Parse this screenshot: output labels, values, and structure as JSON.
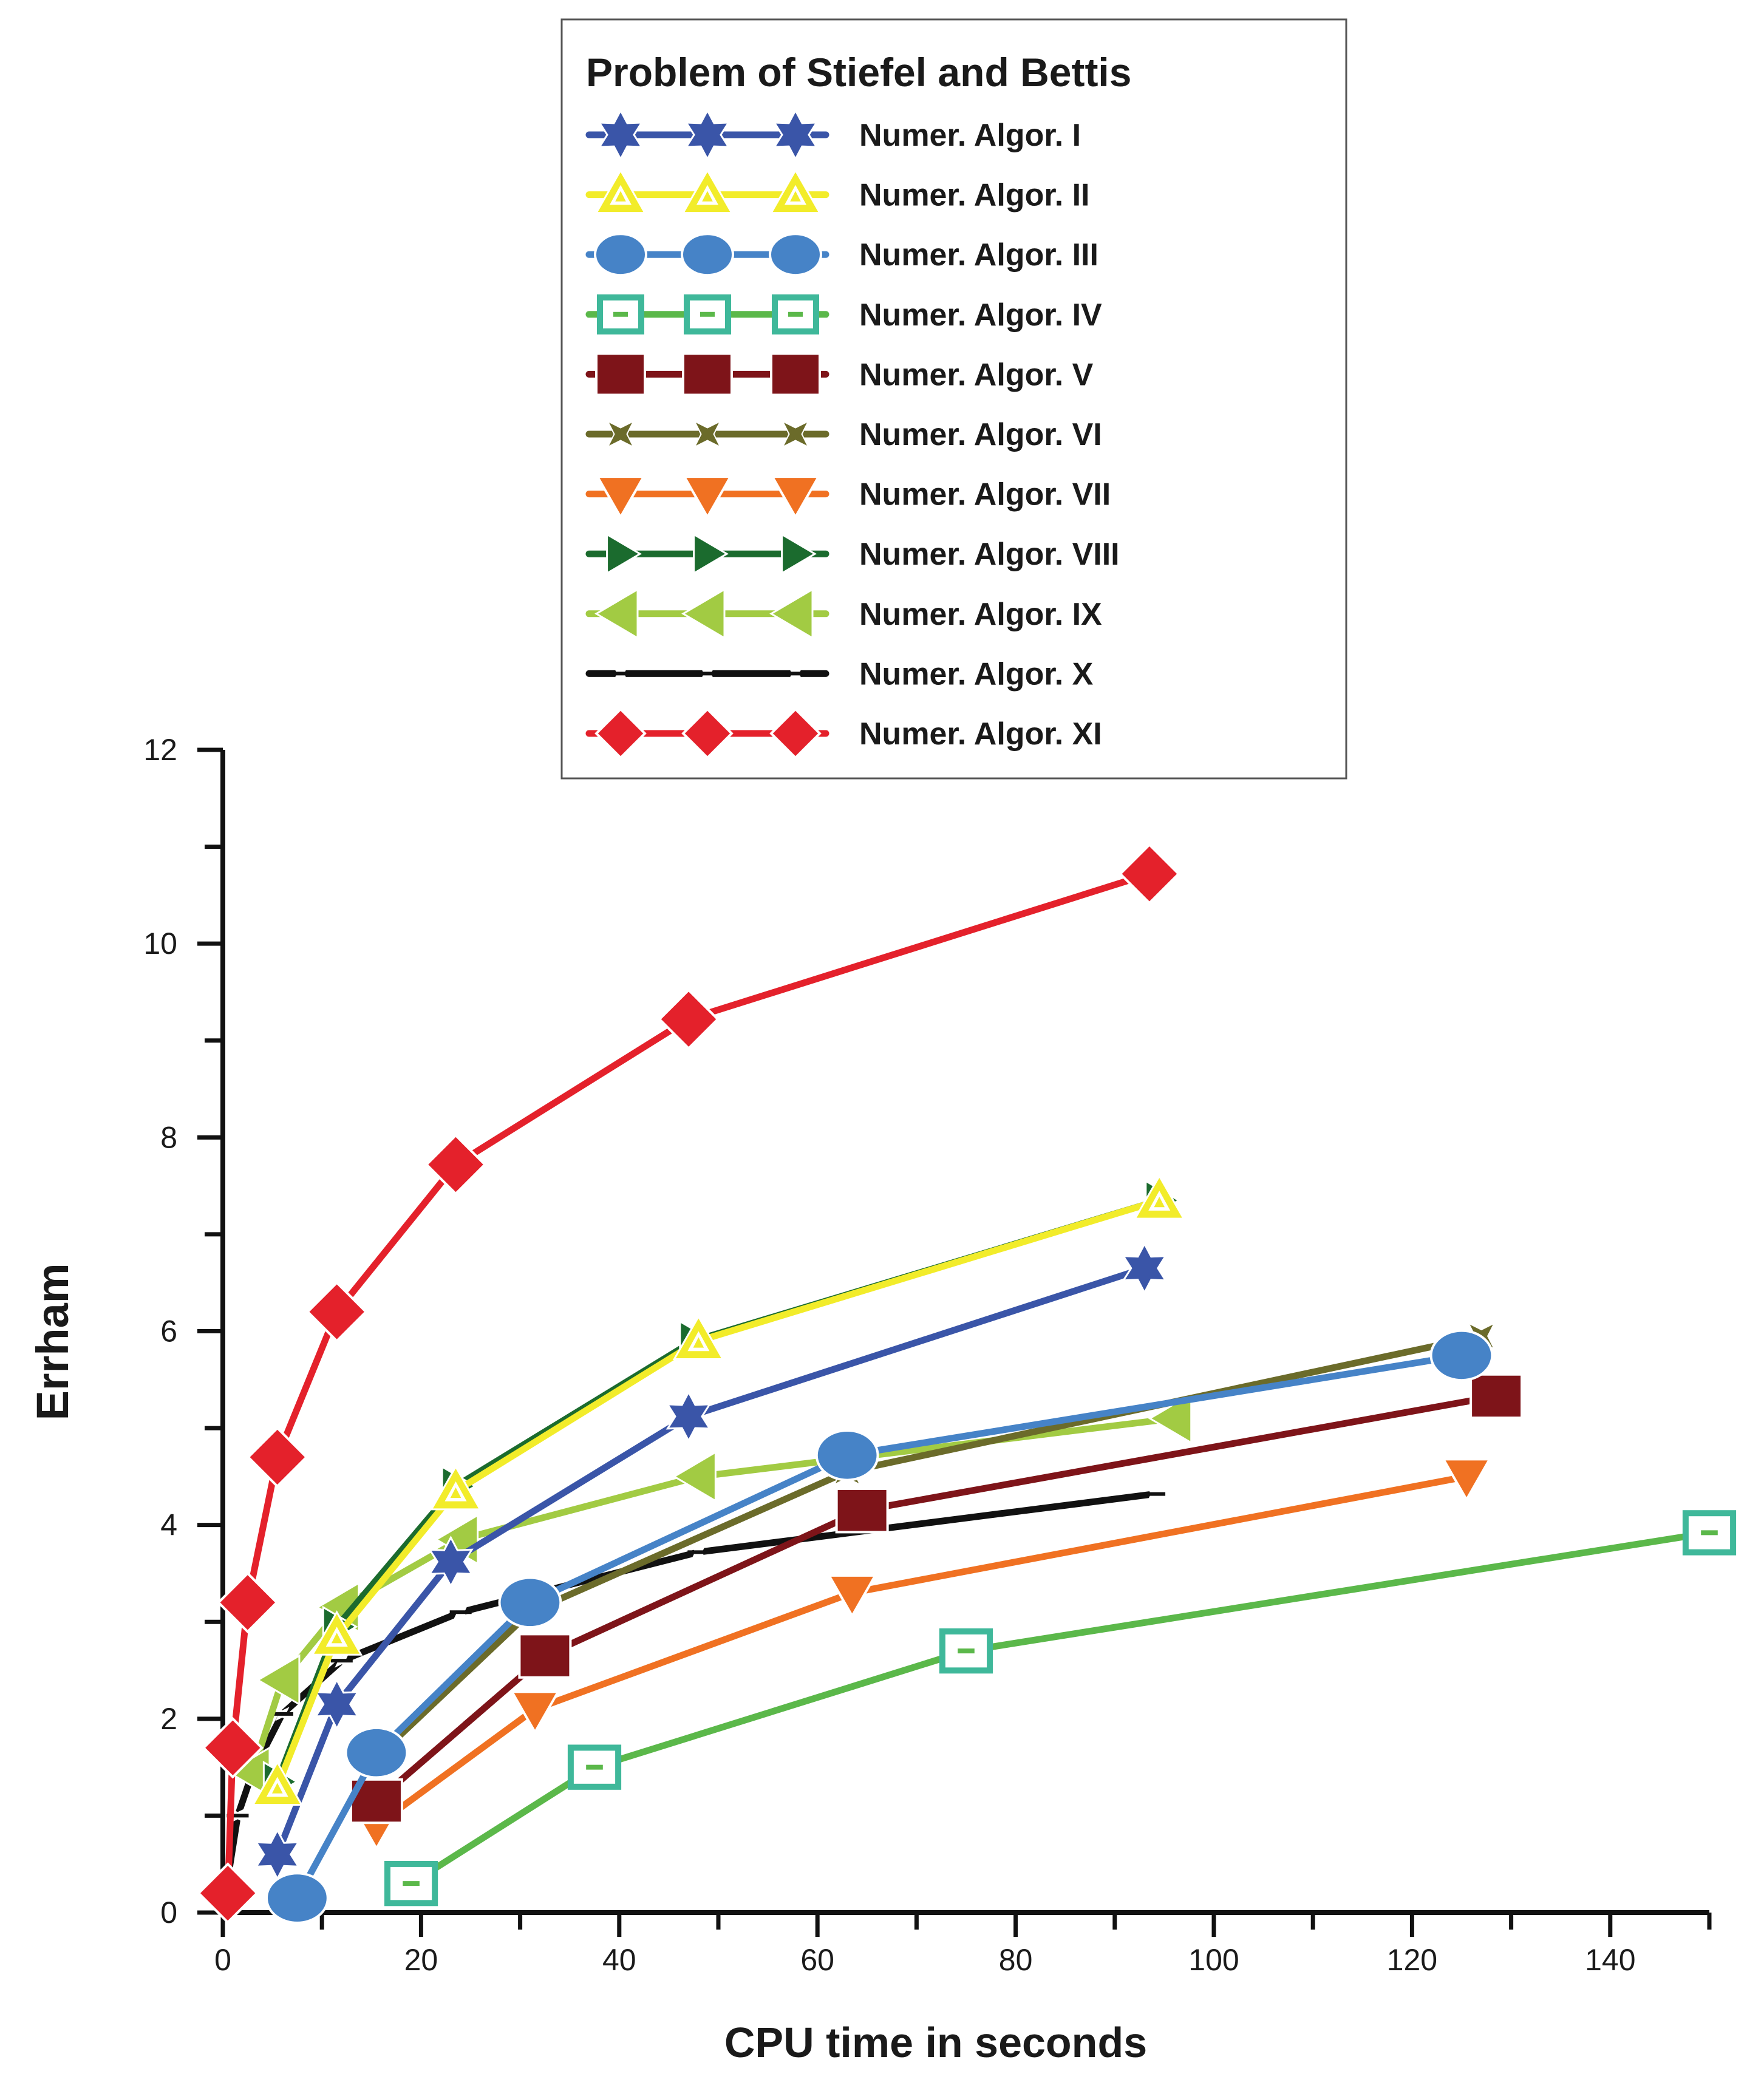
{
  "chart_data": {
    "type": "line",
    "title": "Problem of Stiefel and Bettis",
    "xlabel": "CPU time in seconds",
    "ylabel": "Errham",
    "xlim": [
      0,
      150
    ],
    "ylim": [
      0,
      12
    ],
    "xticks": [
      0,
      20,
      40,
      60,
      80,
      100,
      120,
      140
    ],
    "yticks": [
      0,
      2,
      4,
      6,
      8,
      10,
      12
    ],
    "legend_position": "top-center",
    "series": [
      {
        "name": "Numer. Algor. I",
        "color": "#3a55a8",
        "marker": "star6",
        "x": [
          5.5,
          11.5,
          23.0,
          47.0,
          93.0
        ],
        "y": [
          0.6,
          2.15,
          3.62,
          5.12,
          6.65
        ]
      },
      {
        "name": "Numer. Algor. II",
        "color": "#f2ec2a",
        "marker": "triangle-up-open",
        "x": [
          5.5,
          11.5,
          23.5,
          48.0,
          94.5
        ],
        "y": [
          1.3,
          2.85,
          4.35,
          5.9,
          7.35
        ]
      },
      {
        "name": "Numer. Algor. III",
        "color": "#4683c7",
        "marker": "circle",
        "x": [
          7.5,
          15.5,
          31.0,
          63.0,
          125.0
        ],
        "y": [
          0.15,
          1.65,
          3.2,
          4.72,
          5.75
        ]
      },
      {
        "name": "Numer. Algor. IV",
        "color": "#5bb84a",
        "marker": "square-open",
        "x": [
          19.0,
          37.5,
          75.0,
          150.0
        ],
        "y": [
          0.3,
          1.5,
          2.7,
          3.92
        ]
      },
      {
        "name": "Numer. Algor. V",
        "color": "#7e1419",
        "marker": "square",
        "x": [
          15.5,
          32.5,
          64.5,
          128.5
        ],
        "y": [
          1.15,
          2.65,
          4.15,
          5.33
        ]
      },
      {
        "name": "Numer. Algor. VI",
        "color": "#6b6b2a",
        "marker": "x-star",
        "x": [
          15.5,
          31.0,
          63.0,
          127.0
        ],
        "y": [
          1.6,
          3.1,
          4.55,
          5.95
        ]
      },
      {
        "name": "Numer. Algor. VII",
        "color": "#f07122",
        "marker": "triangle-down",
        "x": [
          15.5,
          31.5,
          63.5,
          125.5
        ],
        "y": [
          0.9,
          2.1,
          3.3,
          4.5
        ]
      },
      {
        "name": "Numer. Algor. VIII",
        "color": "#1b6b2e",
        "marker": "triangle-right",
        "x": [
          5.5,
          11.5,
          23.5,
          47.5,
          94.5
        ],
        "y": [
          1.35,
          2.95,
          4.4,
          5.9,
          7.35
        ]
      },
      {
        "name": "Numer. Algor. IX",
        "color": "#a2cb43",
        "marker": "triangle-left",
        "x": [
          3.0,
          6.0,
          12.0,
          24.0,
          48.0,
          96.0
        ],
        "y": [
          1.45,
          2.4,
          3.15,
          3.85,
          4.5,
          5.1
        ]
      },
      {
        "name": "Numer. Algor. X",
        "color": "#111111",
        "marker": "dash-star",
        "x": [
          0.5,
          1.5,
          3.0,
          6.0,
          12.0,
          24.0,
          48.0,
          94.0
        ],
        "y": [
          0.35,
          1.0,
          1.45,
          2.05,
          2.6,
          3.1,
          3.72,
          4.32
        ]
      },
      {
        "name": "Numer. Algor. XI",
        "color": "#e4212b",
        "marker": "diamond",
        "x": [
          0.5,
          1.0,
          2.5,
          5.5,
          11.5,
          23.5,
          47.0,
          93.5
        ],
        "y": [
          0.2,
          1.7,
          3.2,
          4.7,
          6.2,
          7.72,
          9.22,
          10.72
        ]
      }
    ]
  }
}
